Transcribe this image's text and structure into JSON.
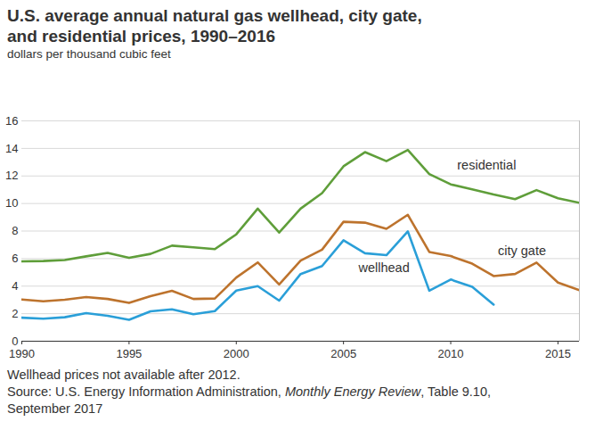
{
  "chart_data": {
    "type": "line",
    "title": "U.S. average annual natural gas wellhead, city gate, and residential prices, 1990–2016",
    "subtitle": "dollars per thousand cubic feet",
    "notes": [
      "Wellhead prices not available after 2012."
    ],
    "source": {
      "prefix": "Source: U.S. Energy Information Administration, ",
      "italic": "Monthly Energy Review",
      "suffix": ", Table 9.10, September 2017"
    },
    "x": [
      1990,
      1991,
      1992,
      1993,
      1994,
      1995,
      1996,
      1997,
      1998,
      1999,
      2000,
      2001,
      2002,
      2003,
      2004,
      2005,
      2006,
      2007,
      2008,
      2009,
      2010,
      2011,
      2012,
      2013,
      2014,
      2015,
      2016
    ],
    "series": [
      {
        "name": "residential",
        "color": "#5f9e3a",
        "values": [
          5.8,
          5.82,
          5.89,
          6.16,
          6.41,
          6.06,
          6.34,
          6.94,
          6.82,
          6.69,
          7.76,
          9.63,
          7.89,
          9.63,
          10.75,
          12.7,
          13.73,
          13.08,
          13.89,
          12.14,
          11.39,
          11.03,
          10.65,
          10.32,
          10.97,
          10.38,
          10.05
        ]
      },
      {
        "name": "city gate",
        "color": "#bd732d",
        "values": [
          3.03,
          2.9,
          3.01,
          3.21,
          3.07,
          2.78,
          3.27,
          3.66,
          3.07,
          3.1,
          4.62,
          5.72,
          4.12,
          5.85,
          6.65,
          8.67,
          8.61,
          8.16,
          9.18,
          6.48,
          6.18,
          5.63,
          4.73,
          4.88,
          5.71,
          4.26,
          3.71
        ]
      },
      {
        "name": "wellhead",
        "color": "#2a9fd8",
        "values": [
          1.71,
          1.64,
          1.74,
          2.04,
          1.85,
          1.55,
          2.17,
          2.32,
          1.96,
          2.19,
          3.68,
          4.0,
          2.95,
          4.88,
          5.46,
          7.33,
          6.39,
          6.25,
          7.97,
          3.67,
          4.48,
          3.95,
          2.66,
          null,
          null,
          null,
          null
        ]
      }
    ],
    "xlim": [
      1990,
      2016
    ],
    "xticks": [
      1990,
      1995,
      2000,
      2005,
      2010,
      2015
    ],
    "ylim": [
      0,
      16
    ],
    "yticks": [
      0,
      2,
      4,
      6,
      8,
      10,
      12,
      14,
      16
    ],
    "grid": true
  }
}
